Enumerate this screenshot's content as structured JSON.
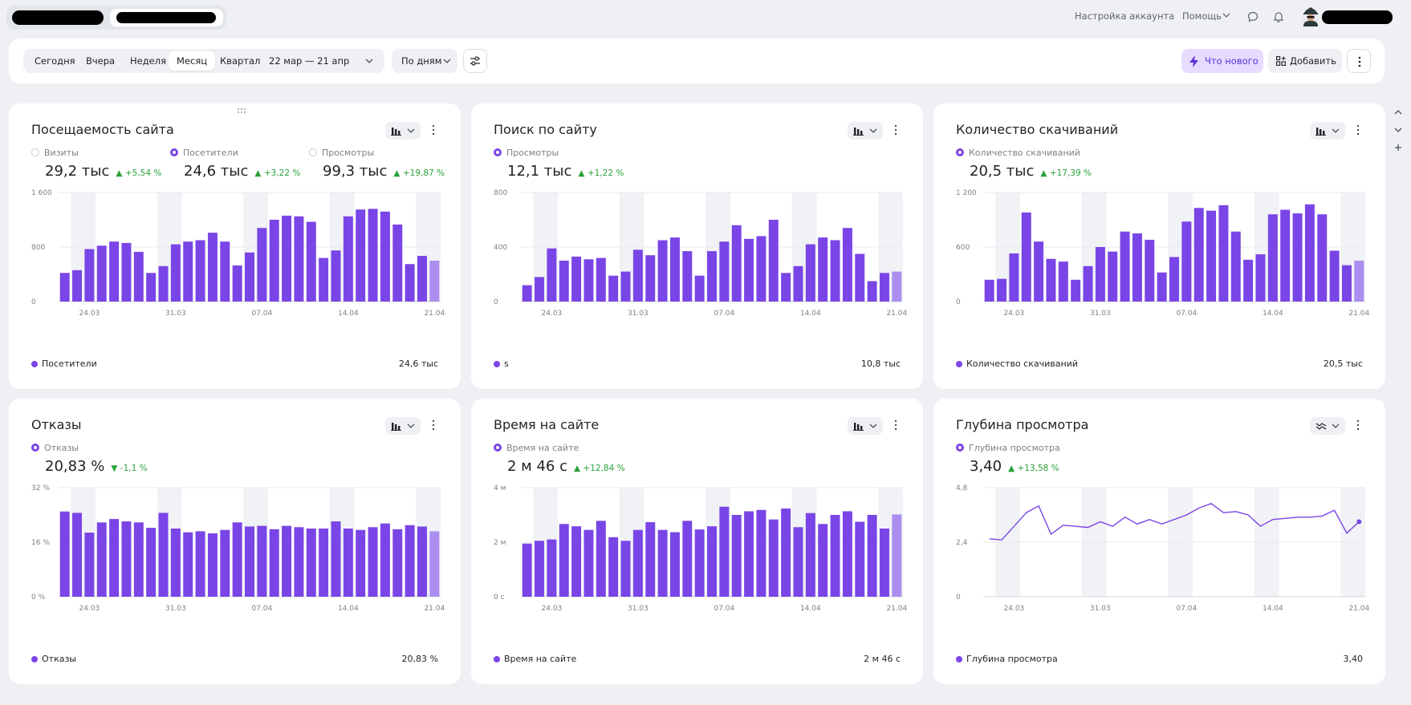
{
  "header": {
    "settings_label": "Настройка аккаунта",
    "help_label": "Помощь"
  },
  "toolbar": {
    "periods": [
      "Сегодня",
      "Вчера",
      "Неделя",
      "Месяц",
      "Квартал",
      "22 мар — 21 апр"
    ],
    "active_period": "Месяц",
    "grouping": "По дням",
    "whats_new": "Что нового",
    "add": "Добавить"
  },
  "colors": {
    "bar": "#7a45e6",
    "bar_partial": "#ab8ef0",
    "weekend_band": "#f1f2f5",
    "delta_positive": "#2aa13b"
  },
  "widgets": [
    {
      "title": "Посещаемость сайта",
      "chart_button_icon": "bar-chart-icon",
      "metrics": [
        {
          "label": "Визиты",
          "value": "29,2 тыс",
          "delta": "+5,54 %",
          "selected": false
        },
        {
          "label": "Посетители",
          "value": "24,6 тыс",
          "delta": "+3,22 %",
          "selected": true
        },
        {
          "label": "Просмотры",
          "value": "99,3 тыс",
          "delta": "+19,87 %",
          "selected": false
        }
      ],
      "legend": "Посетители",
      "legend_total": "24,6 тыс",
      "chart_data": {
        "type": "bar",
        "y_ticks": [
          "1 600",
          "800",
          "0"
        ],
        "ylim": [
          0,
          1600
        ],
        "x_ticks": [
          "24.03",
          "31.03",
          "07.04",
          "14.04",
          "21.04"
        ],
        "values": [
          420,
          460,
          770,
          820,
          880,
          860,
          730,
          420,
          520,
          840,
          880,
          900,
          1010,
          880,
          530,
          720,
          1080,
          1200,
          1260,
          1250,
          1170,
          640,
          750,
          1250,
          1350,
          1360,
          1320,
          1130,
          550,
          670,
          600
        ]
      }
    },
    {
      "title": "Поиск по сайту",
      "chart_button_icon": "bar-chart-icon",
      "metrics": [
        {
          "label": "Просмотры",
          "value": "12,1 тыс",
          "delta": "+1,22 %",
          "selected": true
        }
      ],
      "legend": "s",
      "legend_total": "10,8 тыс",
      "chart_data": {
        "type": "bar",
        "y_ticks": [
          "800",
          "400",
          "0"
        ],
        "ylim": [
          0,
          800
        ],
        "x_ticks": [
          "24.03",
          "31.03",
          "07.04",
          "14.04",
          "21.04"
        ],
        "values": [
          120,
          180,
          390,
          300,
          330,
          310,
          320,
          190,
          220,
          380,
          340,
          450,
          470,
          370,
          190,
          370,
          440,
          560,
          460,
          480,
          600,
          210,
          260,
          420,
          470,
          450,
          540,
          350,
          150,
          210,
          220
        ]
      }
    },
    {
      "title": "Количество скачиваний",
      "chart_button_icon": "bar-chart-icon",
      "metrics": [
        {
          "label": "Количество скачиваний",
          "value": "20,5 тыс",
          "delta": "+17,39 %",
          "selected": true
        }
      ],
      "legend": "Количество скачиваний",
      "legend_total": "20,5 тыс",
      "chart_data": {
        "type": "bar",
        "y_ticks": [
          "1 200",
          "600",
          "0"
        ],
        "ylim": [
          0,
          1200
        ],
        "x_ticks": [
          "24.03",
          "31.03",
          "07.04",
          "14.04",
          "21.04"
        ],
        "values": [
          240,
          250,
          530,
          980,
          660,
          470,
          440,
          240,
          390,
          600,
          550,
          770,
          750,
          680,
          320,
          490,
          880,
          1030,
          1000,
          1060,
          770,
          460,
          520,
          960,
          1010,
          970,
          1070,
          960,
          560,
          400,
          450
        ]
      }
    },
    {
      "title": "Отказы",
      "chart_button_icon": "bar-chart-icon",
      "metrics": [
        {
          "label": "Отказы",
          "value": "20,83 %",
          "delta": "-1,1 %",
          "selected": true,
          "direction": "down"
        }
      ],
      "legend": "Отказы",
      "legend_total": "20,83 %",
      "chart_data": {
        "type": "bar",
        "y_ticks": [
          "32 %",
          "16 %",
          "0 %"
        ],
        "ylim": [
          0,
          32
        ],
        "x_ticks": [
          "24.03",
          "31.03",
          "07.04",
          "14.04",
          "21.04"
        ],
        "values": [
          25,
          24.6,
          18.8,
          21.8,
          22.8,
          22.1,
          21.8,
          20.2,
          24.6,
          20,
          18.9,
          19.2,
          18.6,
          19.6,
          21.8,
          20.6,
          20.8,
          19.8,
          20.8,
          20.4,
          20,
          20,
          22.1,
          20,
          19.6,
          20.4,
          21.5,
          19.8,
          21,
          20.6,
          19.2
        ]
      }
    },
    {
      "title": "Время на сайте",
      "chart_button_icon": "bar-chart-icon",
      "metrics": [
        {
          "label": "Время на сайте",
          "value": "2 м 46 с",
          "delta": "+12,84 %",
          "selected": true
        }
      ],
      "legend": "Время на сайте",
      "legend_total": "2 м 46 с",
      "chart_data": {
        "type": "bar",
        "unit": "с",
        "y_ticks": [
          "4 м",
          "2 м",
          "0 с"
        ],
        "ylim": [
          0,
          240
        ],
        "x_ticks": [
          "24.03",
          "31.03",
          "07.04",
          "14.04",
          "21.04"
        ],
        "values": [
          117,
          123,
          126,
          160,
          155,
          147,
          167,
          131,
          123,
          147,
          164,
          147,
          142,
          167,
          148,
          155,
          198,
          180,
          188,
          191,
          170,
          194,
          153,
          184,
          160,
          180,
          188,
          165,
          180,
          150,
          181
        ]
      }
    },
    {
      "title": "Глубина просмотра",
      "chart_button_icon": "line-chart-icon",
      "metrics": [
        {
          "label": "Глубина просмотра",
          "value": "3,40",
          "delta": "+13,58 %",
          "selected": true
        }
      ],
      "legend": "Глубина просмотра",
      "legend_total": "3,40",
      "chart_data": {
        "type": "line",
        "y_ticks": [
          "4,8",
          "2,4",
          "0"
        ],
        "ylim": [
          0,
          4.8
        ],
        "x_ticks": [
          "24.03",
          "31.03",
          "07.04",
          "14.04",
          "21.04"
        ],
        "values": [
          2.55,
          2.5,
          3.1,
          3.7,
          4.0,
          2.75,
          3.15,
          3.1,
          3.05,
          3.3,
          3.1,
          3.5,
          3.2,
          3.4,
          3.2,
          3.4,
          3.6,
          3.9,
          4.1,
          3.7,
          3.75,
          3.6,
          3.1,
          3.4,
          3.45,
          3.5,
          3.5,
          3.55,
          3.8,
          2.8,
          3.3
        ]
      }
    }
  ]
}
